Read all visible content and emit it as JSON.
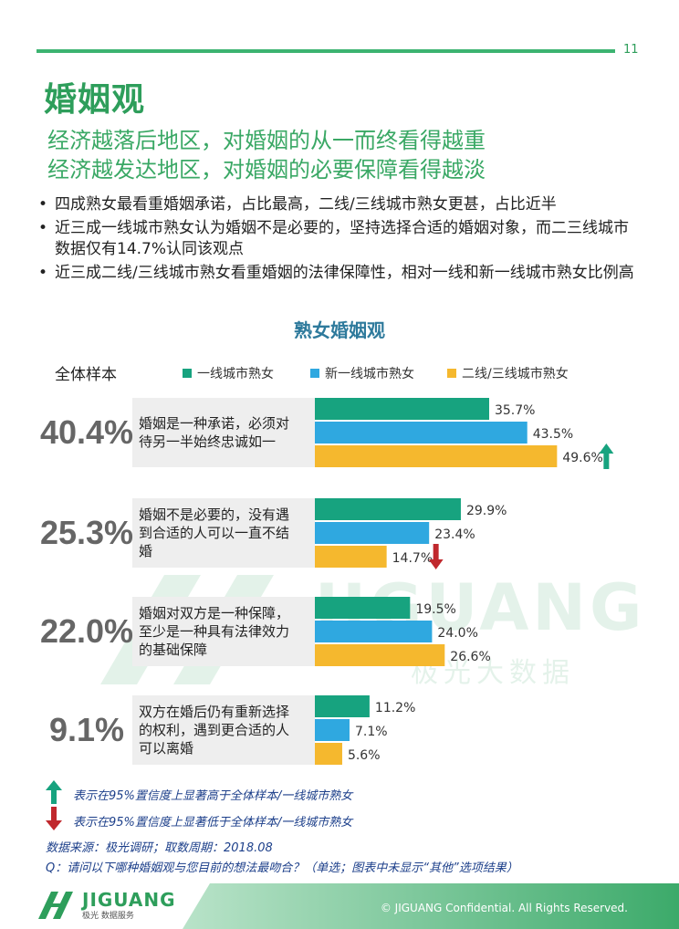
{
  "page": {
    "number": "11",
    "title": "婚姻观",
    "subtitle_1": "经济越落后地区，对婚姻的从一而终看得越重",
    "subtitle_2": "经济越发达地区，对婚姻的必要保障看得越淡",
    "bullets": [
      "四成熟女最看重婚姻承诺，占比最高，二线/三线城市熟女更甚，占比近半",
      "近三成一线城市熟女认为婚姻不是必要的，坚持选择合适的婚姻对象，而二三线城市数据仅有14.7%认同该观点",
      "近三成二线/三线城市熟女看重婚姻的法律保障性，相对一线和新一线城市熟女比例高"
    ]
  },
  "chart_data": {
    "type": "bar",
    "orientation": "horizontal",
    "title": "熟女婚姻观",
    "overall_label": "全体样本",
    "legend_placement": "top",
    "categories": [
      "婚姻是一种承诺，必须对待另一半始终忠诚如一",
      "婚姻不是必要的，没有遇到合适的人可以一直不结婚",
      "婚姻对双方是一种保障，至少是一种具有法律效力的基础保障",
      "双方在婚后仍有重新选择的权利，遇到更合适的人可以离婚"
    ],
    "category_lines": [
      [
        "婚姻是一种承诺，必须对",
        "待另一半始终忠诚如一"
      ],
      [
        "婚姻不是必要的，没有遇",
        "到合适的人可以一直不结",
        "婚"
      ],
      [
        "婚姻对双方是一种保障，",
        "至少是一种具有法律效力",
        "的基础保障"
      ],
      [
        "双方在婚后仍有重新选择",
        "的权利，遇到更合适的人",
        "可以离婚"
      ]
    ],
    "overall": [
      "40.4%",
      "25.3%",
      "22.0%",
      "9.1%"
    ],
    "series": [
      {
        "name": "一线城市熟女",
        "color": "#17a37f",
        "values": [
          35.7,
          29.9,
          19.5,
          11.2
        ]
      },
      {
        "name": "新一线城市熟女",
        "color": "#2fa8e0",
        "values": [
          43.5,
          23.4,
          24.0,
          7.1
        ]
      },
      {
        "name": "二线/三线城市熟女",
        "color": "#f5b82e",
        "values": [
          49.6,
          14.7,
          26.6,
          5.6
        ]
      }
    ],
    "value_suffix": "%",
    "significance": [
      {
        "category": 0,
        "series": 2,
        "direction": "up"
      },
      {
        "category": 1,
        "series": 2,
        "direction": "down"
      }
    ]
  },
  "notes": {
    "up": "表示在95%置信度上显著高于全体样本/一线城市熟女",
    "down": "表示在95%置信度上显著低于全体样本/一线城市熟女",
    "source": "数据来源：极光调研；取数周期：2018.08",
    "question": "Q：请问以下哪种婚姻观与您目前的想法最吻合？（单选；图表中未显示“其他”选项结果）"
  },
  "footer": {
    "logo_main": "JIGUANG",
    "logo_sub": "极光 数据服务",
    "copyright": "© JIGUANG Confidential. All Rights Reserved."
  },
  "watermark": {
    "main": "JIGUANG",
    "sub": "极光大数据"
  },
  "colors": {
    "accent_green": "#2e9e5b",
    "up_arrow": "#17a37f",
    "down_arrow": "#c0282d"
  }
}
